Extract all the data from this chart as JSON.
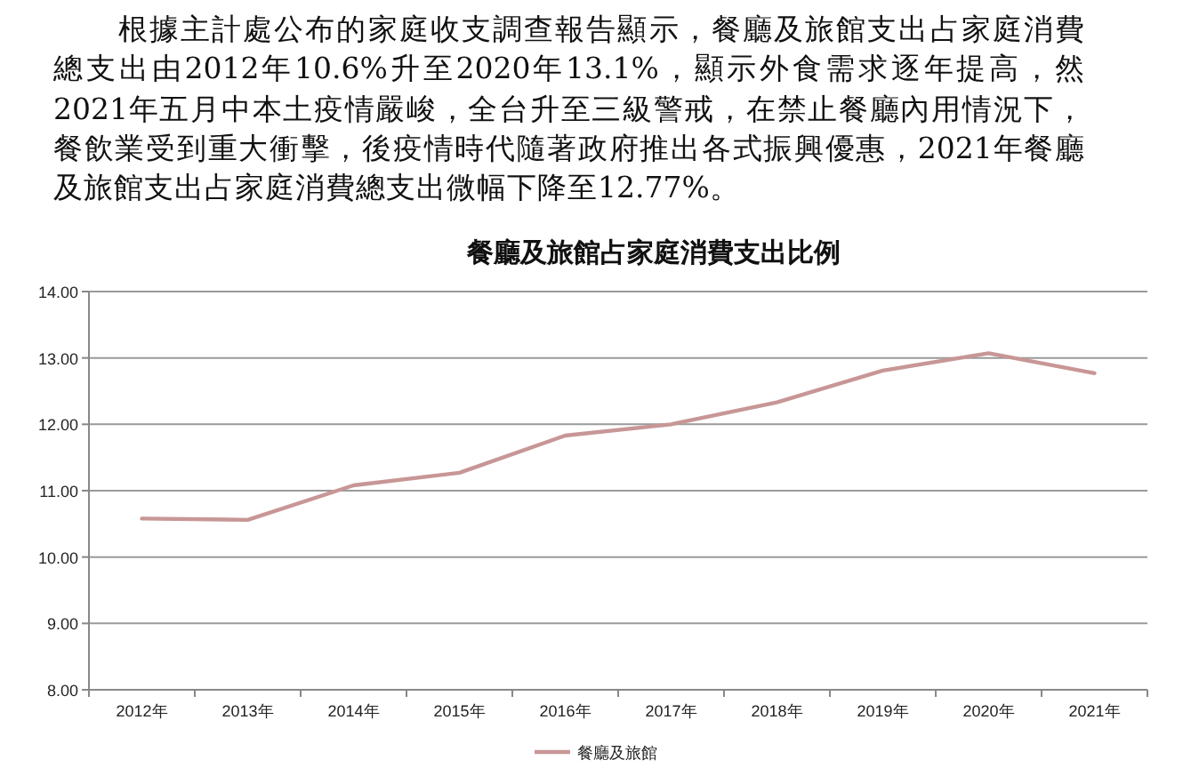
{
  "chart_data": {
    "type": "line",
    "title": "餐廳及旅館占家庭消費支出比例",
    "annotations": [
      "根據主計處公布的家庭收支調查報告顯示，餐廳及旅館支出占家庭消費總支出由2012年10.6%升至2020年13.1%，顯示外食需求逐年提高，然2021年五月中本土疫情嚴峻，全台升至三級警戒，在禁止餐廳內用情況下，餐飲業受到重大衝擊，後疫情時代隨著政府推出各式振興優惠，2021年餐廳及旅館支出占家庭消費總支出微幅下降至12.77%。"
    ],
    "categories": [
      "2012年",
      "2013年",
      "2014年",
      "2015年",
      "2016年",
      "2017年",
      "2018年",
      "2019年",
      "2020年",
      "2021年"
    ],
    "series": [
      {
        "name": "餐廳及旅館",
        "color": "#c89696",
        "values": [
          10.58,
          10.56,
          11.08,
          11.27,
          11.83,
          12.0,
          12.33,
          12.81,
          13.07,
          12.77
        ]
      }
    ],
    "ylim": [
      8,
      14
    ],
    "yticks": [
      {
        "value": 8,
        "label": "8.00"
      },
      {
        "value": 9,
        "label": "9.00"
      },
      {
        "value": 10,
        "label": "10.00"
      },
      {
        "value": 11,
        "label": "11.00"
      },
      {
        "value": 12,
        "label": "12.00"
      },
      {
        "value": 13,
        "label": "13.00"
      },
      {
        "value": 14,
        "label": "14.00"
      }
    ],
    "grid": "y",
    "legend": "bottom",
    "marker": "none",
    "line_style": "solid"
  }
}
